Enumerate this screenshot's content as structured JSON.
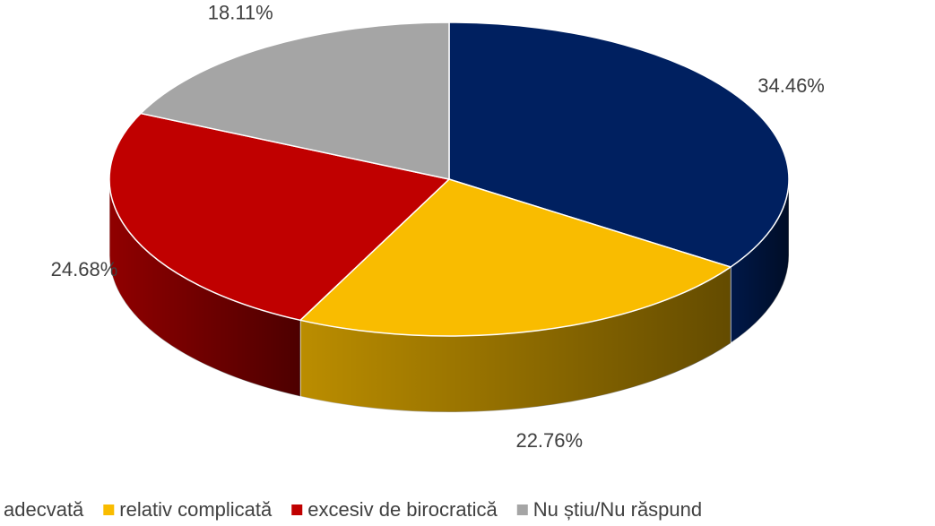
{
  "chart_data": {
    "type": "pie",
    "categories": [
      "adecvată",
      "relativ complicată",
      "excesiv de birocratică",
      "Nu știu/Nu răspund"
    ],
    "values": [
      34.46,
      22.76,
      24.68,
      18.11
    ],
    "value_labels": [
      "34.46%",
      "22.76%",
      "24.68%",
      "18.11%"
    ],
    "colors": [
      "#002060",
      "#F9BC00",
      "#C00000",
      "#A5A5A5"
    ],
    "legend": "bottom"
  }
}
